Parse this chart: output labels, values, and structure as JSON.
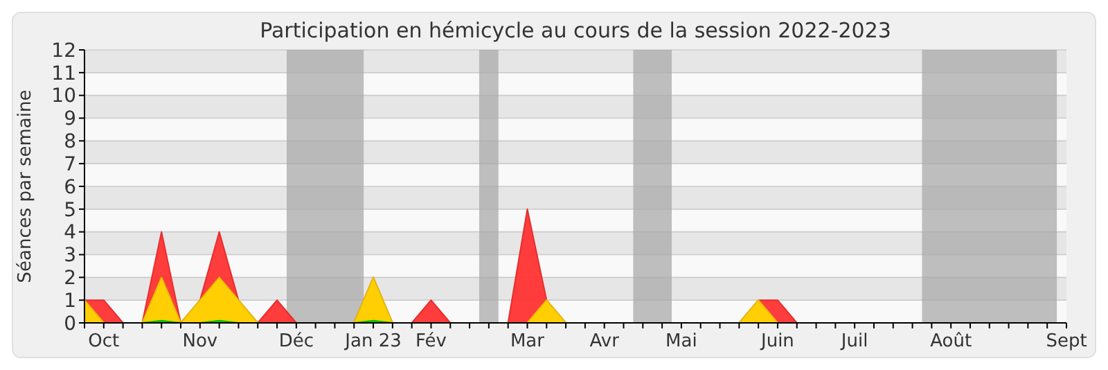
{
  "chart_data": {
    "type": "area",
    "title": "Participation en hémicycle au cours de la session 2022-2023",
    "ylabel": "Séances par semaine",
    "x": [
      "2022-09-26",
      "2022-10-03",
      "2022-10-10",
      "2022-10-17",
      "2022-10-24",
      "2022-10-31",
      "2022-11-07",
      "2022-11-14",
      "2022-11-21",
      "2022-11-28",
      "2022-12-05",
      "2022-12-12",
      "2022-12-19",
      "2022-12-26",
      "2023-01-02",
      "2023-01-09",
      "2023-01-16",
      "2023-01-23",
      "2023-01-30",
      "2023-02-06",
      "2023-02-13",
      "2023-02-20",
      "2023-02-27",
      "2023-03-06",
      "2023-03-13",
      "2023-03-20",
      "2023-03-27",
      "2023-04-03",
      "2023-04-10",
      "2023-04-17",
      "2023-04-24",
      "2023-05-01",
      "2023-05-08",
      "2023-05-15",
      "2023-05-22",
      "2023-05-29",
      "2023-06-05",
      "2023-06-12",
      "2023-06-19",
      "2023-06-26",
      "2023-07-03",
      "2023-07-10",
      "2023-07-17",
      "2023-07-24",
      "2023-07-31",
      "2023-08-07",
      "2023-08-14",
      "2023-08-21",
      "2023-08-28",
      "2023-09-04",
      "2023-09-11",
      "2023-09-18"
    ],
    "series": [
      {
        "color": "#ff3333",
        "values": [
          1,
          1,
          0,
          0,
          4,
          0,
          1,
          4,
          1,
          0,
          1,
          0,
          0,
          0,
          0,
          2,
          0,
          0,
          1,
          0,
          0,
          0,
          0,
          5,
          1,
          0,
          0,
          0,
          0,
          0,
          0,
          0,
          0,
          0,
          0,
          1,
          1,
          0,
          0,
          0,
          0,
          0,
          0,
          0,
          0,
          0,
          0,
          0,
          0,
          0,
          0,
          0
        ]
      },
      {
        "color": "#ffd700",
        "values": [
          1,
          0,
          0,
          0,
          2,
          0,
          1,
          2,
          1,
          0,
          0,
          0,
          0,
          0,
          0,
          2,
          0,
          0,
          0,
          0,
          0,
          0,
          0,
          0,
          1,
          0,
          0,
          0,
          0,
          0,
          0,
          0,
          0,
          0,
          0,
          1,
          0,
          0,
          0,
          0,
          0,
          0,
          0,
          0,
          0,
          0,
          0,
          0,
          0,
          0,
          0,
          0
        ]
      },
      {
        "color": "#00cc00",
        "values": [
          0,
          0,
          0,
          0,
          0.1,
          0,
          0,
          0.1,
          0,
          0,
          0,
          0,
          0,
          0,
          0,
          0.1,
          0,
          0,
          0,
          0,
          0,
          0,
          0,
          0,
          0,
          0,
          0,
          0,
          0,
          0,
          0,
          0,
          0,
          0,
          0,
          0,
          0,
          0,
          0,
          0,
          0,
          0,
          0,
          0,
          0,
          0,
          0,
          0,
          0,
          0,
          0,
          0
        ]
      }
    ],
    "xlim": [
      "2022-09-26",
      "2023-09-18"
    ],
    "xticks": [
      {
        "value": "2022-09-26",
        "label": null
      },
      {
        "value": "2022-10-03",
        "label": "Oct"
      },
      {
        "value": "2022-10-10",
        "label": null
      },
      {
        "value": "2022-10-17",
        "label": null
      },
      {
        "value": "2022-10-24",
        "label": null
      },
      {
        "value": "2022-10-31",
        "label": null
      },
      {
        "value": "2022-11-07",
        "label": "Nov"
      },
      {
        "value": "2022-11-14",
        "label": null
      },
      {
        "value": "2022-11-21",
        "label": null
      },
      {
        "value": "2022-11-28",
        "label": null
      },
      {
        "value": "2022-12-05",
        "label": null
      },
      {
        "value": "2022-12-12",
        "label": "Déc"
      },
      {
        "value": "2022-12-19",
        "label": null
      },
      {
        "value": "2022-12-26",
        "label": null
      },
      {
        "value": "2023-01-02",
        "label": null
      },
      {
        "value": "2023-01-09",
        "label": "Jan 23"
      },
      {
        "value": "2023-01-16",
        "label": null
      },
      {
        "value": "2023-01-23",
        "label": null
      },
      {
        "value": "2023-01-30",
        "label": "Fév"
      },
      {
        "value": "2023-02-06",
        "label": null
      },
      {
        "value": "2023-02-13",
        "label": null
      },
      {
        "value": "2023-02-20",
        "label": null
      },
      {
        "value": "2023-02-27",
        "label": null
      },
      {
        "value": "2023-03-06",
        "label": "Mar"
      },
      {
        "value": "2023-03-13",
        "label": null
      },
      {
        "value": "2023-03-20",
        "label": null
      },
      {
        "value": "2023-03-27",
        "label": null
      },
      {
        "value": "2023-04-03",
        "label": "Avr"
      },
      {
        "value": "2023-04-10",
        "label": null
      },
      {
        "value": "2023-04-17",
        "label": null
      },
      {
        "value": "2023-04-24",
        "label": null
      },
      {
        "value": "2023-05-01",
        "label": "Mai"
      },
      {
        "value": "2023-05-08",
        "label": null
      },
      {
        "value": "2023-05-15",
        "label": null
      },
      {
        "value": "2023-05-22",
        "label": null
      },
      {
        "value": "2023-05-29",
        "label": null
      },
      {
        "value": "2023-06-05",
        "label": "Juin"
      },
      {
        "value": "2023-06-12",
        "label": null
      },
      {
        "value": "2023-06-19",
        "label": null
      },
      {
        "value": "2023-06-26",
        "label": null
      },
      {
        "value": "2023-07-03",
        "label": "Juil"
      },
      {
        "value": "2023-07-10",
        "label": null
      },
      {
        "value": "2023-07-17",
        "label": null
      },
      {
        "value": "2023-07-24",
        "label": null
      },
      {
        "value": "2023-07-31",
        "label": null
      },
      {
        "value": "2023-08-07",
        "label": "Août"
      },
      {
        "value": "2023-08-14",
        "label": null
      },
      {
        "value": "2023-08-21",
        "label": null
      },
      {
        "value": "2023-08-28",
        "label": null
      },
      {
        "value": "2023-09-04",
        "label": null
      },
      {
        "value": "2023-09-11",
        "label": null
      },
      {
        "value": "2023-09-18",
        "label": "Sept"
      }
    ],
    "ylim": [
      0,
      12
    ],
    "yticks": [
      0,
      1,
      2,
      3,
      4,
      5,
      6,
      7,
      8,
      9,
      10,
      11,
      12
    ],
    "grid": "y",
    "bands": [
      {
        "axis": "x",
        "from": "2022-12-08T12:00",
        "to": "2023-01-05T12:00",
        "color": "#aaaaaa"
      },
      {
        "axis": "x",
        "from": "2023-02-16T12:00",
        "to": "2023-02-23T12:00",
        "color": "#aaaaaa"
      },
      {
        "axis": "x",
        "from": "2023-04-13T12:00",
        "to": "2023-04-27T12:00",
        "color": "#aaaaaa"
      },
      {
        "axis": "x",
        "from": "2023-07-27T12:00",
        "to": "2023-09-14T12:00",
        "color": "#aaaaaa"
      }
    ]
  }
}
